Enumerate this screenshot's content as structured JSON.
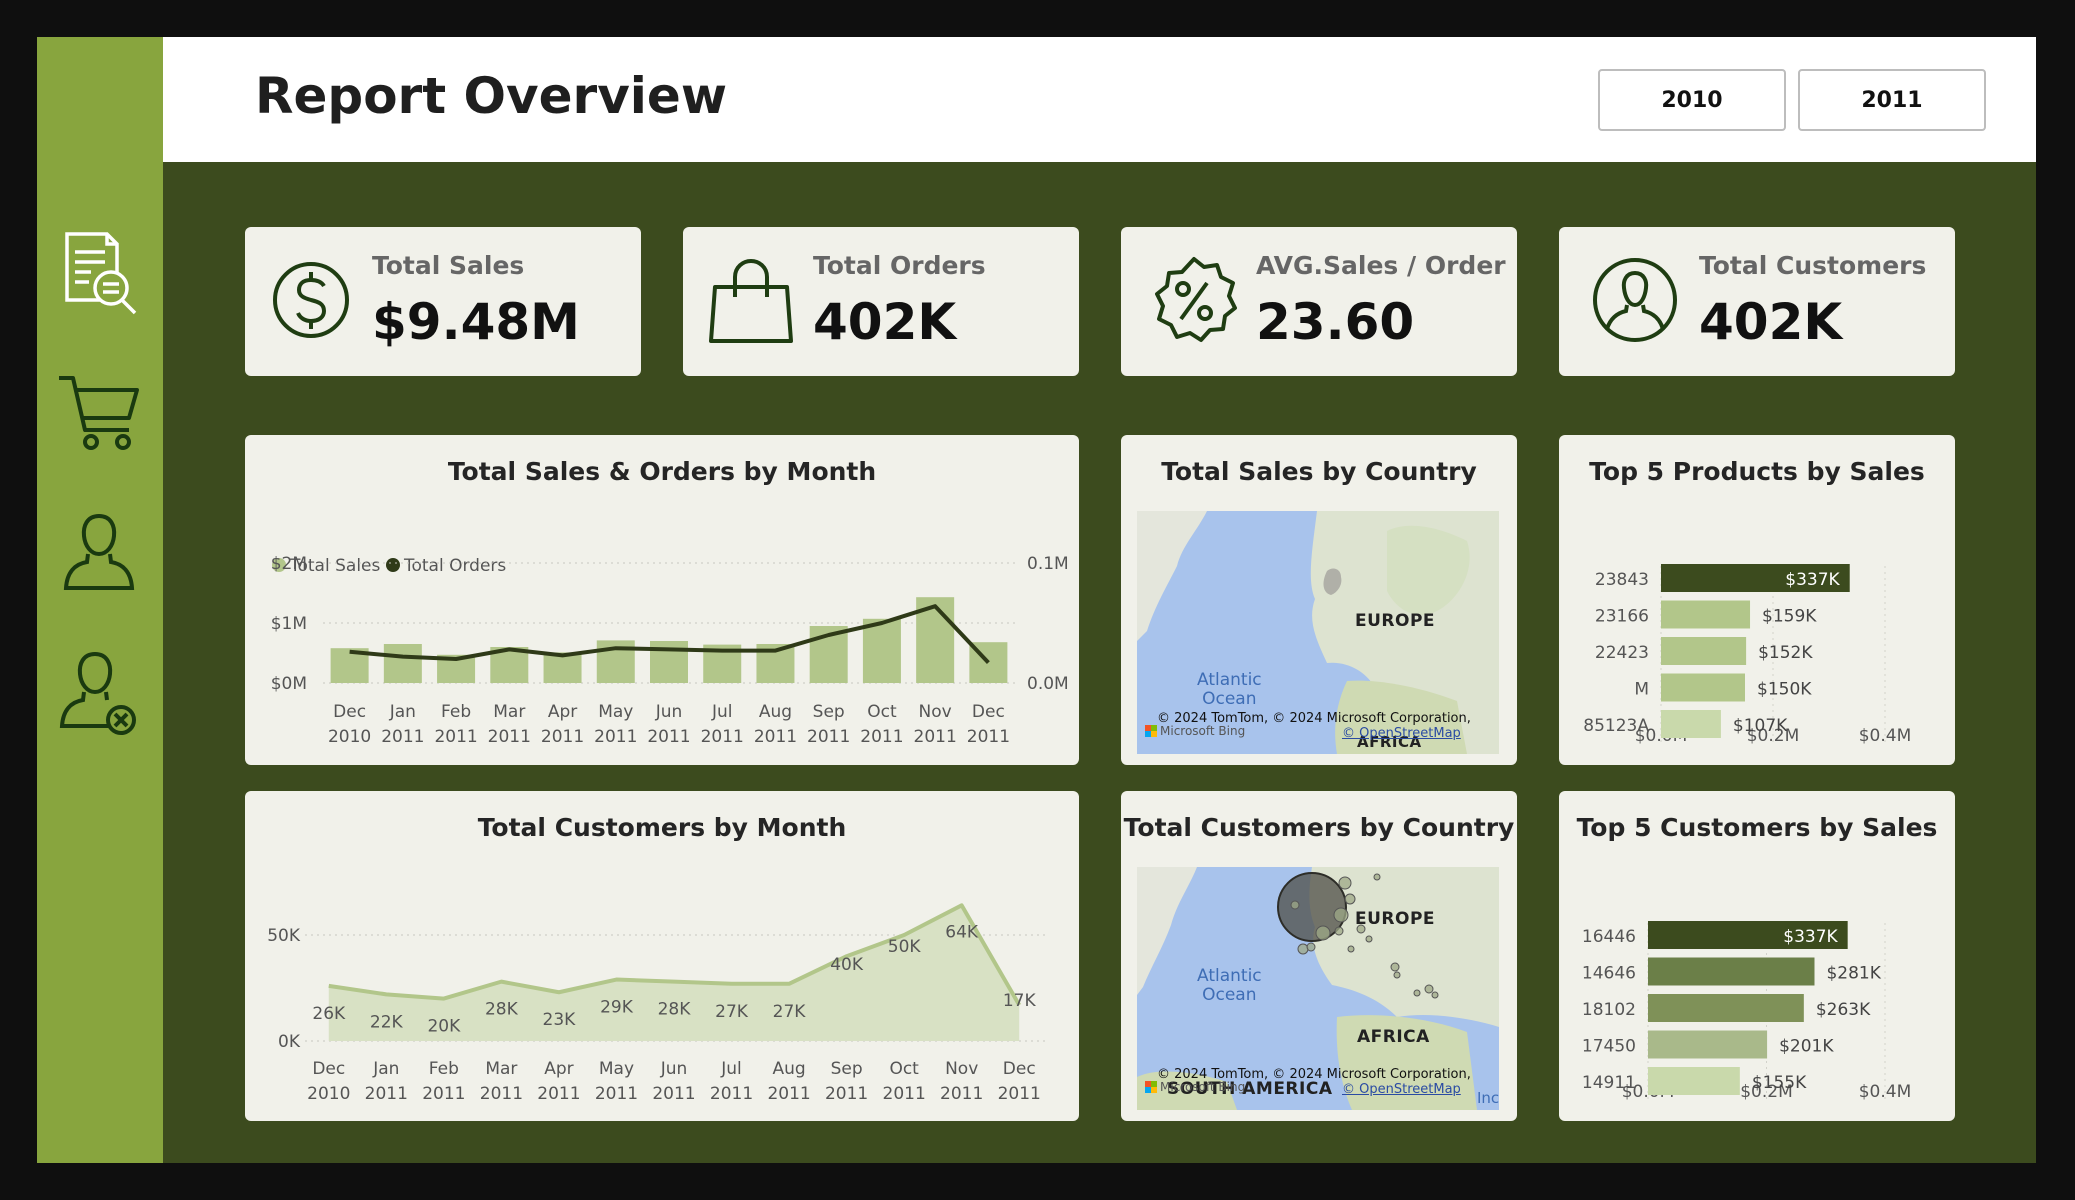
{
  "header": {
    "title": "Report Overview",
    "years": [
      "2010",
      "2011"
    ]
  },
  "sidebar": {
    "items": [
      "report-search-icon",
      "shopping-cart-icon",
      "user-icon",
      "user-remove-icon"
    ]
  },
  "kpis": [
    {
      "label": "Total Sales",
      "value": "$9.48M",
      "icon": "dollar-circle-icon"
    },
    {
      "label": "Total Orders",
      "value": "402K",
      "icon": "shopping-bag-icon"
    },
    {
      "label": "AVG.Sales / Order",
      "value": "23.60",
      "icon": "percent-badge-icon"
    },
    {
      "label": "Total Customers",
      "value": "402K",
      "icon": "user-circle-icon"
    }
  ],
  "colors": {
    "dark_green": "#3c4b1e",
    "accent_green": "#88a53e",
    "bar_green": "#b2c68a",
    "line_dark": "#2f3a18",
    "card_bg": "#f1f1ea"
  },
  "maps": {
    "sales": {
      "title": "Total Sales by Country",
      "labels": {
        "europe": "EUROPE",
        "ocean": "Atlantic\nOcean",
        "africa": "AFRICA"
      },
      "copyright": "© 2024 TomTom, © 2024 Microsoft Corporation,",
      "osm": "© OpenStreetMap",
      "bing": "Microsoft Bing"
    },
    "customers": {
      "title": "Total Customers by Country",
      "labels": {
        "europe": "EUROPE",
        "ocean": "Atlantic\nOcean",
        "africa": "AFRICA",
        "south_america": "SOUTH AMERICA",
        "edge": "Inc"
      },
      "copyright": "© 2024 TomTom, © 2024 Microsoft Corporation,",
      "osm": "© OpenStreetMap",
      "bing": "Microsoft Bing"
    }
  },
  "chart_data": [
    {
      "type": "bar",
      "title": "Total Sales & Orders by Month",
      "categories": [
        "Dec 2010",
        "Jan 2011",
        "Feb 2011",
        "Mar 2011",
        "Apr 2011",
        "May 2011",
        "Jun 2011",
        "Jul 2011",
        "Aug 2011",
        "Sep 2011",
        "Oct 2011",
        "Nov 2011",
        "Dec 2011"
      ],
      "series": [
        {
          "name": "Total Sales",
          "kind": "bar",
          "axis": "left",
          "values": [
            580000,
            650000,
            470000,
            600000,
            510000,
            710000,
            700000,
            640000,
            650000,
            950000,
            1070000,
            1430000,
            680000
          ]
        },
        {
          "name": "Total Orders",
          "kind": "line",
          "axis": "right",
          "values": [
            26000,
            22000,
            20000,
            28000,
            23000,
            29000,
            28000,
            27000,
            27000,
            40000,
            50000,
            64000,
            17000
          ]
        }
      ],
      "left_ticks": [
        "$0M",
        "$1M",
        "$2M"
      ],
      "right_ticks": [
        "0.0M",
        "0.1M"
      ],
      "ylim": [
        0,
        2000000
      ],
      "y2lim": [
        0,
        100000
      ],
      "legend": "top-left"
    },
    {
      "type": "area",
      "title": "Total Customers by Month",
      "categories": [
        "Dec 2010",
        "Jan 2011",
        "Feb 2011",
        "Mar 2011",
        "Apr 2011",
        "May 2011",
        "Jun 2011",
        "Jul 2011",
        "Aug 2011",
        "Sep 2011",
        "Oct 2011",
        "Nov 2011",
        "Dec 2011"
      ],
      "values": [
        26000,
        22000,
        20000,
        28000,
        23000,
        29000,
        28000,
        27000,
        27000,
        40000,
        50000,
        64000,
        17000
      ],
      "data_labels": [
        "26K",
        "22K",
        "20K",
        "28K",
        "23K",
        "29K",
        "28K",
        "27K",
        "27K",
        "40K",
        "50K",
        "64K",
        "17K"
      ],
      "y_ticks": [
        "0K",
        "50K"
      ],
      "ylim": [
        0,
        70000
      ]
    },
    {
      "type": "bar",
      "orientation": "horizontal",
      "title": "Top 5 Products by Sales",
      "categories": [
        "23843",
        "23166",
        "22423",
        "M",
        "85123A"
      ],
      "values": [
        337000,
        159000,
        152000,
        150000,
        107000
      ],
      "data_labels": [
        "$337K",
        "$159K",
        "$152K",
        "$150K",
        "$107K"
      ],
      "x_ticks": [
        "$0.0M",
        "$0.2M",
        "$0.4M"
      ],
      "xlim": [
        0,
        400000
      ],
      "bar_colors": [
        "#3c4b1e",
        "#b2c68a",
        "#b2c68a",
        "#b2c68a",
        "#c9d9ab"
      ]
    },
    {
      "type": "bar",
      "orientation": "horizontal",
      "title": "Top 5 Customers by Sales",
      "categories": [
        "16446",
        "14646",
        "18102",
        "17450",
        "14911"
      ],
      "values": [
        337000,
        281000,
        263000,
        201000,
        155000
      ],
      "data_labels": [
        "$337K",
        "$281K",
        "$263K",
        "$201K",
        "$155K"
      ],
      "x_ticks": [
        "$0.0M",
        "$0.2M",
        "$0.4M"
      ],
      "xlim": [
        0,
        400000
      ],
      "bar_colors": [
        "#3c4b1e",
        "#6b7f48",
        "#7f9158",
        "#a9b98a",
        "#c9d9ab"
      ]
    }
  ]
}
